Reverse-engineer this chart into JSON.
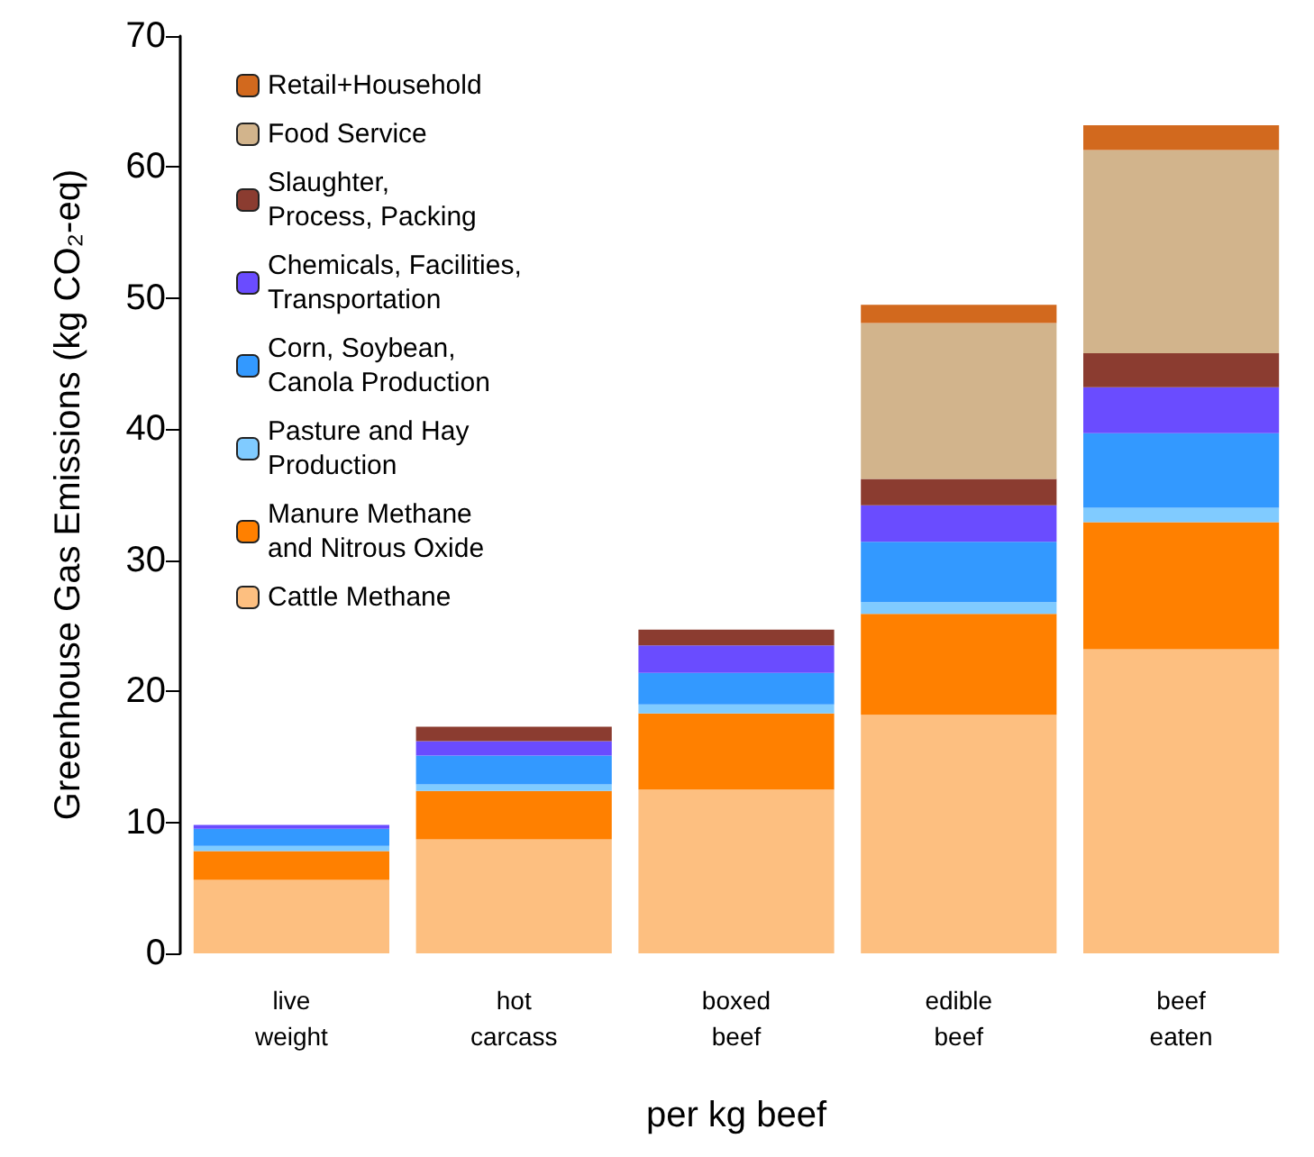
{
  "chart_data": {
    "type": "bar",
    "stacked": true,
    "xlabel": "per kg beef",
    "ylabel": "Greenhouse Gas Emissions (kg CO₂-eq)",
    "categories": [
      "live\nweight",
      "hot\ncarcass",
      "boxed\nbeef",
      "edible\nbeef",
      "beef\neaten"
    ],
    "series": [
      {
        "name": "Cattle Methane",
        "color": "#fdbf80",
        "values": [
          5.6,
          8.7,
          12.5,
          18.2,
          23.2
        ]
      },
      {
        "name": "Manure Methane\nand Nitrous Oxide",
        "color": "#ff8000",
        "values": [
          2.2,
          3.7,
          5.8,
          7.7,
          9.7
        ]
      },
      {
        "name": "Pasture and Hay\nProduction",
        "color": "#80cbff",
        "values": [
          0.4,
          0.5,
          0.7,
          0.9,
          1.1
        ]
      },
      {
        "name": "Corn, Soybean,\nCanola Production",
        "color": "#3399ff",
        "values": [
          1.3,
          2.2,
          2.4,
          4.6,
          5.7
        ]
      },
      {
        "name": "Chemicals, Facilities,\nTransportation",
        "color": "#6a4cff",
        "values": [
          0.3,
          1.1,
          2.1,
          2.8,
          3.5
        ]
      },
      {
        "name": "Slaughter,\nProcess, Packing",
        "color": "#8b3c30",
        "values": [
          0,
          1.1,
          1.2,
          2.0,
          2.6
        ]
      },
      {
        "name": "Food Service",
        "color": "#d2b48c",
        "values": [
          0,
          0,
          0,
          11.9,
          15.5
        ]
      },
      {
        "name": "Retail+Household",
        "color": "#d2691e",
        "values": [
          0,
          0,
          0,
          1.4,
          1.9
        ]
      }
    ],
    "ylim": [
      0,
      70
    ],
    "yticks": [
      0,
      10,
      20,
      30,
      40,
      50,
      60,
      70
    ],
    "grid": false,
    "legend": "top left"
  }
}
